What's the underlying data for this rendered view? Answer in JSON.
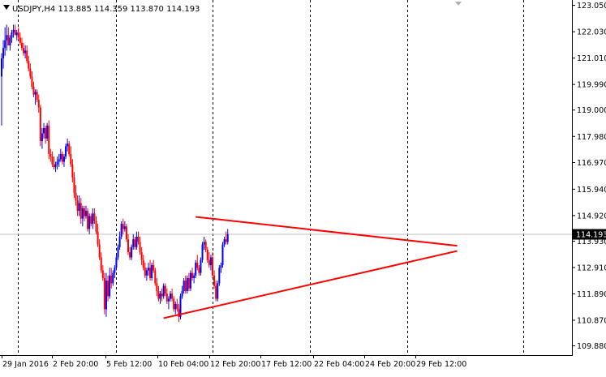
{
  "chart_data": {
    "type": "candlestick",
    "title": "USDJPY,H4  113.885 114.359 113.870 114.193",
    "symbol": "USDJPY",
    "timeframe": "H4",
    "ohlc_header": {
      "open": 113.885,
      "high": 114.359,
      "low": 113.87,
      "close": 114.193
    },
    "current_price": 114.193,
    "current_price_label": "114.193",
    "ylim": [
      109.6,
      123.1
    ],
    "y_ticks": [
      "123.050",
      "122.030",
      "121.010",
      "119.990",
      "119.000",
      "117.980",
      "116.970",
      "115.940",
      "114.920",
      "113.930",
      "112.910",
      "111.890",
      "110.870",
      "109.880"
    ],
    "x_ticks": [
      "29 Jan 2016",
      "2 Feb 20:00",
      "5 Feb 12:00",
      "10 Feb 04:00",
      "12 Feb 20:00",
      "17 Feb 12:00",
      "22 Feb 04:00",
      "24 Feb 20:00",
      "29 Feb 12:00"
    ],
    "grid": false,
    "period_separators": true,
    "bull_color": "#0000ff",
    "bear_color": "#ff0000",
    "trendline_color": "#ff0000",
    "trendlines": [
      {
        "name": "upper",
        "start": {
          "bar": 115,
          "price": 114.87
        },
        "end": {
          "bar": 270,
          "price": 113.75
        }
      },
      {
        "name": "lower",
        "start": {
          "bar": 96,
          "price": 110.95
        },
        "end": {
          "bar": 270,
          "price": 113.55
        }
      }
    ],
    "candles": [
      [
        120.3,
        121.2,
        118.4,
        121.0
      ],
      [
        121.0,
        121.7,
        120.6,
        121.4
      ],
      [
        121.4,
        122.2,
        121.1,
        121.7
      ],
      [
        121.7,
        122.3,
        121.3,
        121.9
      ],
      [
        121.9,
        122.2,
        121.5,
        121.5
      ],
      [
        121.5,
        121.9,
        121.3,
        121.8
      ],
      [
        121.8,
        122.1,
        121.6,
        122.0
      ],
      [
        122.0,
        122.3,
        121.8,
        122.1
      ],
      [
        122.1,
        122.3,
        121.9,
        121.9
      ],
      [
        121.9,
        122.1,
        121.7,
        122.0
      ],
      [
        122.0,
        122.2,
        121.7,
        121.8
      ],
      [
        121.8,
        122.0,
        121.5,
        121.6
      ],
      [
        121.6,
        121.8,
        121.3,
        121.4
      ],
      [
        121.4,
        121.6,
        121.1,
        121.2
      ],
      [
        121.2,
        121.5,
        121.0,
        121.3
      ],
      [
        121.3,
        121.5,
        120.8,
        120.9
      ],
      [
        120.9,
        121.1,
        120.5,
        120.6
      ],
      [
        120.6,
        120.8,
        120.2,
        120.3
      ],
      [
        120.3,
        120.5,
        119.8,
        119.9
      ],
      [
        119.9,
        120.1,
        119.5,
        119.6
      ],
      [
        119.6,
        119.8,
        119.2,
        119.7
      ],
      [
        119.7,
        119.8,
        119.3,
        119.4
      ],
      [
        119.4,
        119.6,
        118.9,
        119.1
      ],
      [
        119.1,
        119.2,
        117.6,
        117.8
      ],
      [
        117.8,
        118.3,
        117.5,
        118.1
      ],
      [
        118.1,
        118.5,
        117.9,
        118.3
      ],
      [
        118.3,
        118.4,
        117.7,
        117.9
      ],
      [
        117.9,
        118.5,
        117.8,
        118.4
      ],
      [
        118.4,
        118.6,
        117.1,
        117.3
      ],
      [
        117.3,
        117.5,
        117.0,
        117.2
      ],
      [
        117.2,
        117.4,
        116.8,
        116.9
      ],
      [
        116.9,
        117.2,
        116.7,
        116.8
      ],
      [
        116.8,
        117.0,
        116.6,
        116.9
      ],
      [
        116.9,
        117.2,
        116.7,
        117.0
      ],
      [
        117.0,
        117.3,
        116.8,
        117.1
      ],
      [
        117.1,
        117.5,
        117.0,
        117.3
      ],
      [
        117.3,
        117.4,
        116.9,
        117.0
      ],
      [
        117.0,
        117.3,
        116.8,
        117.2
      ],
      [
        117.2,
        117.7,
        117.1,
        117.6
      ],
      [
        117.6,
        117.9,
        117.4,
        117.7
      ],
      [
        117.7,
        117.8,
        117.2,
        117.3
      ],
      [
        117.3,
        117.6,
        116.8,
        116.9
      ],
      [
        116.9,
        117.1,
        116.2,
        116.4
      ],
      [
        116.4,
        116.6,
        115.6,
        115.8
      ],
      [
        115.8,
        116.1,
        115.3,
        115.5
      ],
      [
        115.5,
        115.7,
        114.9,
        115.1
      ],
      [
        115.1,
        115.7,
        114.9,
        115.4
      ],
      [
        115.4,
        115.6,
        114.6,
        114.8
      ],
      [
        114.8,
        115.3,
        114.5,
        115.2
      ],
      [
        115.2,
        115.3,
        114.7,
        114.9
      ],
      [
        114.9,
        115.3,
        114.8,
        115.1
      ],
      [
        115.1,
        115.2,
        114.3,
        114.4
      ],
      [
        114.4,
        115.0,
        114.2,
        114.9
      ],
      [
        114.9,
        115.0,
        114.5,
        114.6
      ],
      [
        114.6,
        115.2,
        114.4,
        115.0
      ],
      [
        115.0,
        115.2,
        114.6,
        114.7
      ],
      [
        114.7,
        114.9,
        114.2,
        114.3
      ],
      [
        114.3,
        114.6,
        113.7,
        113.8
      ],
      [
        113.8,
        114.0,
        113.2,
        113.3
      ],
      [
        113.3,
        113.5,
        112.7,
        112.8
      ],
      [
        112.8,
        113.0,
        112.4,
        112.5
      ],
      [
        112.5,
        112.7,
        111.1,
        111.3
      ],
      [
        111.3,
        112.7,
        111.0,
        112.4
      ],
      [
        112.4,
        112.6,
        111.6,
        111.8
      ],
      [
        111.8,
        112.9,
        111.7,
        112.6
      ],
      [
        112.6,
        112.9,
        112.1,
        112.3
      ],
      [
        112.3,
        112.8,
        112.2,
        112.7
      ],
      [
        112.7,
        113.0,
        112.5,
        112.9
      ],
      [
        112.9,
        113.4,
        112.8,
        113.3
      ],
      [
        113.3,
        113.8,
        113.2,
        113.7
      ],
      [
        113.7,
        114.3,
        113.6,
        114.1
      ],
      [
        114.1,
        114.7,
        114.0,
        114.6
      ],
      [
        114.6,
        114.8,
        114.2,
        114.4
      ],
      [
        114.4,
        114.7,
        114.3,
        114.5
      ],
      [
        114.5,
        114.6,
        113.9,
        114.0
      ],
      [
        114.0,
        114.2,
        113.4,
        113.5
      ],
      [
        113.5,
        113.7,
        113.2,
        113.3
      ],
      [
        113.3,
        113.8,
        113.2,
        113.7
      ],
      [
        113.7,
        114.2,
        113.6,
        114.0
      ],
      [
        114.0,
        114.1,
        113.6,
        113.7
      ],
      [
        113.7,
        114.3,
        113.6,
        114.1
      ],
      [
        114.1,
        114.3,
        113.8,
        113.9
      ],
      [
        113.9,
        114.1,
        113.4,
        113.5
      ],
      [
        113.5,
        113.7,
        113.0,
        113.2
      ],
      [
        113.2,
        113.4,
        112.8,
        112.9
      ],
      [
        112.9,
        113.1,
        112.5,
        112.6
      ],
      [
        112.6,
        112.9,
        112.4,
        112.8
      ],
      [
        112.8,
        113.1,
        112.6,
        112.9
      ],
      [
        112.9,
        113.2,
        112.4,
        112.5
      ],
      [
        112.5,
        113.1,
        112.4,
        113.0
      ],
      [
        113.0,
        113.2,
        112.7,
        112.8
      ],
      [
        112.8,
        112.9,
        112.2,
        112.3
      ],
      [
        112.3,
        112.5,
        111.8,
        112.0
      ],
      [
        112.0,
        112.2,
        111.6,
        111.7
      ],
      [
        111.7,
        112.0,
        111.5,
        111.9
      ],
      [
        111.9,
        112.1,
        111.6,
        111.8
      ],
      [
        111.8,
        112.3,
        111.7,
        112.2
      ],
      [
        112.2,
        112.3,
        111.8,
        111.9
      ],
      [
        111.9,
        112.1,
        111.5,
        111.6
      ],
      [
        111.6,
        111.8,
        111.3,
        111.7
      ],
      [
        111.7,
        112.0,
        111.6,
        111.9
      ],
      [
        111.9,
        112.1,
        111.6,
        111.7
      ],
      [
        111.7,
        111.8,
        111.2,
        111.3
      ],
      [
        111.3,
        111.6,
        111.1,
        111.5
      ],
      [
        111.5,
        111.7,
        111.2,
        111.3
      ],
      [
        111.3,
        111.5,
        110.8,
        111.0
      ],
      [
        111.0,
        111.9,
        110.9,
        111.8
      ],
      [
        111.8,
        112.2,
        111.7,
        112.0
      ],
      [
        112.0,
        112.5,
        111.9,
        112.4
      ],
      [
        112.4,
        112.6,
        111.9,
        112.0
      ],
      [
        112.0,
        112.6,
        111.9,
        112.5
      ],
      [
        112.5,
        112.7,
        112.0,
        112.1
      ],
      [
        112.1,
        112.8,
        112.0,
        112.7
      ],
      [
        112.7,
        112.9,
        112.4,
        112.5
      ],
      [
        112.5,
        112.7,
        112.3,
        112.6
      ],
      [
        112.6,
        113.2,
        112.5,
        113.1
      ],
      [
        113.1,
        113.4,
        112.8,
        112.9
      ],
      [
        112.9,
        113.0,
        112.6,
        112.7
      ],
      [
        112.7,
        113.3,
        112.6,
        113.2
      ],
      [
        113.2,
        113.9,
        113.1,
        113.8
      ],
      [
        113.8,
        114.1,
        113.6,
        113.9
      ],
      [
        113.9,
        114.0,
        113.5,
        113.6
      ],
      [
        113.6,
        113.7,
        113.1,
        113.2
      ],
      [
        113.2,
        113.5,
        112.9,
        113.0
      ],
      [
        113.0,
        113.4,
        112.8,
        113.3
      ],
      [
        113.3,
        113.5,
        112.5,
        112.6
      ],
      [
        112.6,
        112.8,
        112.1,
        112.2
      ],
      [
        112.2,
        112.4,
        111.6,
        111.7
      ],
      [
        111.7,
        112.4,
        111.6,
        112.3
      ],
      [
        112.3,
        113.0,
        112.2,
        112.9
      ],
      [
        112.9,
        113.1,
        112.7,
        113.0
      ],
      [
        113.0,
        113.9,
        112.9,
        113.8
      ],
      [
        113.8,
        114.1,
        113.7,
        114.0
      ],
      [
        114.0,
        114.3,
        113.8,
        113.9
      ],
      [
        113.9,
        114.4,
        113.8,
        114.2
      ]
    ]
  }
}
